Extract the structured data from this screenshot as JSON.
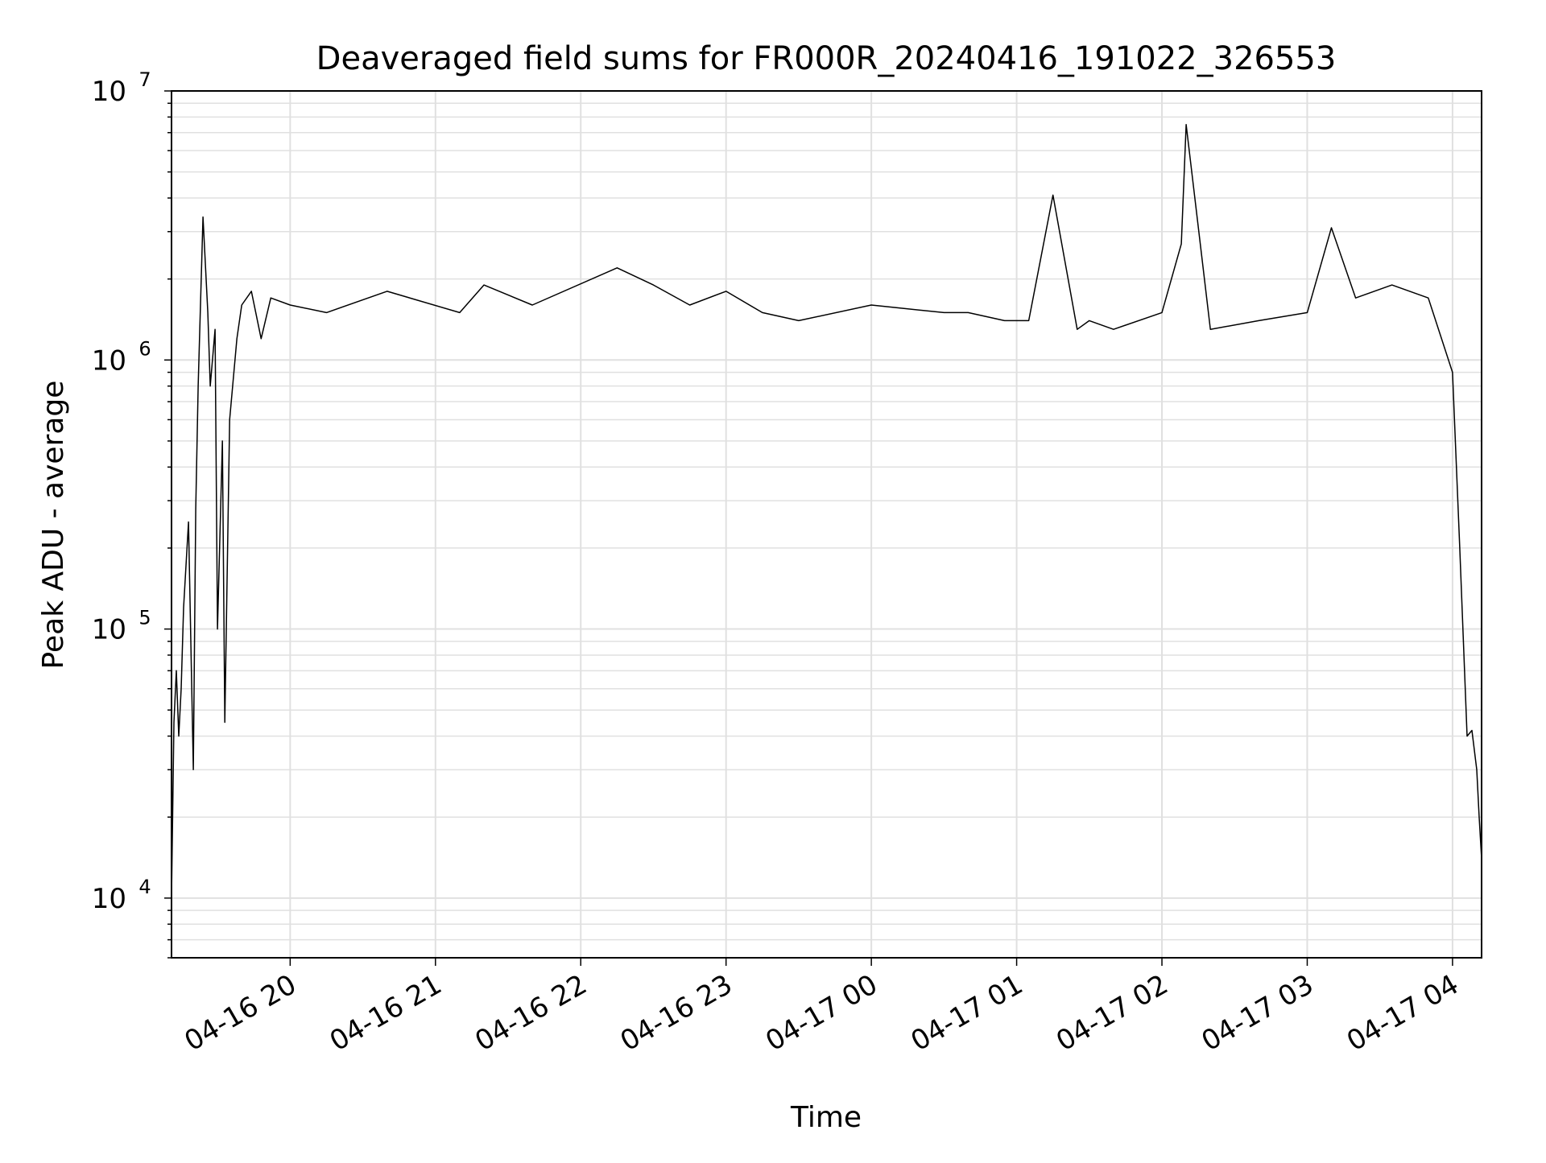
{
  "chart_data": {
    "type": "line",
    "title": "Deaveraged field sums for FR000R_20240416_191022_326553",
    "xlabel": "Time",
    "ylabel": "Peak ADU - average",
    "yscale": "log",
    "ylim": [
      6000,
      10000000
    ],
    "xlim": [
      "04-16 19:11",
      "04-17 04:12"
    ],
    "grid": true,
    "line_color": "#000000",
    "grid_color": "#e0e0e0",
    "x_ticks": [
      "04-16 20",
      "04-16 21",
      "04-16 22",
      "04-16 23",
      "04-17 00",
      "04-17 01",
      "04-17 02",
      "04-17 03",
      "04-17 04"
    ],
    "y_ticks": [
      {
        "base": "10",
        "exp": "4",
        "value": 10000
      },
      {
        "base": "10",
        "exp": "5",
        "value": 100000
      },
      {
        "base": "10",
        "exp": "6",
        "value": 1000000
      },
      {
        "base": "10",
        "exp": "7",
        "value": 10000000
      }
    ],
    "series": [
      {
        "x": [
          "04-16 19:11",
          "04-16 19:12",
          "04-16 19:13",
          "04-16 19:14",
          "04-16 19:15",
          "04-16 19:16",
          "04-16 19:18",
          "04-16 19:20",
          "04-16 19:21",
          "04-16 19:22",
          "04-16 19:24",
          "04-16 19:26",
          "04-16 19:27",
          "04-16 19:29",
          "04-16 19:30",
          "04-16 19:32",
          "04-16 19:33",
          "04-16 19:35",
          "04-16 19:38",
          "04-16 19:40",
          "04-16 19:44",
          "04-16 19:48",
          "04-16 19:52",
          "04-16 20:00",
          "04-16 20:15",
          "04-16 20:40",
          "04-16 21:10",
          "04-16 21:20",
          "04-16 21:40",
          "04-16 22:15",
          "04-16 22:30",
          "04-16 22:45",
          "04-16 23:00",
          "04-16 23:15",
          "04-16 23:30",
          "04-17 00:00",
          "04-17 00:30",
          "04-17 00:40",
          "04-17 00:55",
          "04-17 01:05",
          "04-17 01:15",
          "04-17 01:25",
          "04-17 01:30",
          "04-17 01:40",
          "04-17 02:00",
          "04-17 02:08",
          "04-17 02:10",
          "04-17 02:20",
          "04-17 02:40",
          "04-17 03:00",
          "04-17 03:10",
          "04-17 03:20",
          "04-17 03:35",
          "04-17 03:50",
          "04-17 04:00",
          "04-17 04:03",
          "04-17 04:06",
          "04-17 04:08",
          "04-17 04:10",
          "04-17 04:11",
          "04-17 04:12"
        ],
        "y": [
          10000,
          45000,
          70000,
          40000,
          60000,
          120000,
          250000,
          30000,
          280000,
          800000,
          3400000,
          1500000,
          800000,
          1300000,
          100000,
          500000,
          45000,
          600000,
          1200000,
          1600000,
          1800000,
          1200000,
          1700000,
          1600000,
          1500000,
          1800000,
          1500000,
          1900000,
          1600000,
          2200000,
          1900000,
          1600000,
          1800000,
          1500000,
          1400000,
          1600000,
          1500000,
          1500000,
          1400000,
          1400000,
          4100000,
          1300000,
          1400000,
          1300000,
          1500000,
          2700000,
          7500000,
          1300000,
          1400000,
          1500000,
          3100000,
          1700000,
          1900000,
          1700000,
          900000,
          200000,
          40000,
          42000,
          30000,
          20000,
          14000
        ]
      }
    ]
  }
}
